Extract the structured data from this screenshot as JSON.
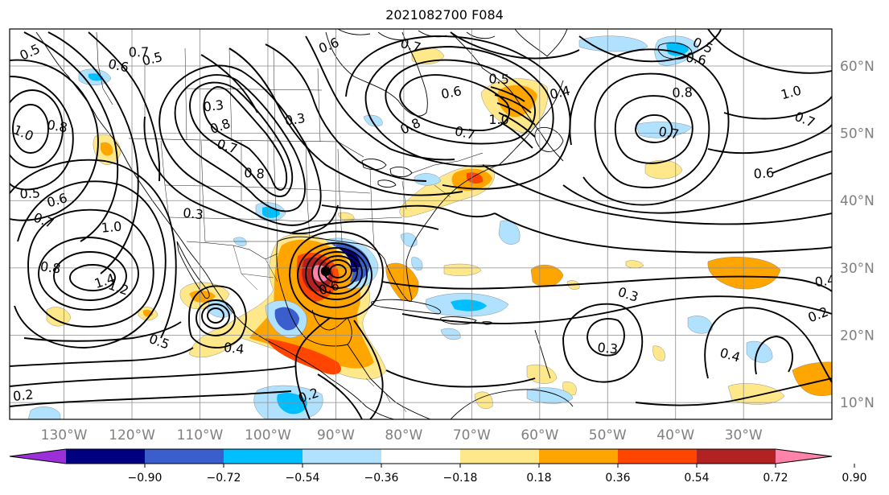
{
  "title": "2021082700 F084",
  "map": {
    "lon_range": [
      -138,
      -17
    ],
    "lat_range": [
      7.5,
      65.5
    ],
    "lon_ticks": [
      {
        "value": -130,
        "label": "130°W"
      },
      {
        "value": -120,
        "label": "120°W"
      },
      {
        "value": -110,
        "label": "110°W"
      },
      {
        "value": -100,
        "label": "100°W"
      },
      {
        "value": -90,
        "label": "90°W"
      },
      {
        "value": -80,
        "label": "80°W"
      },
      {
        "value": -70,
        "label": "70°W"
      },
      {
        "value": -60,
        "label": "60°W"
      },
      {
        "value": -50,
        "label": "50°W"
      },
      {
        "value": -40,
        "label": "40°W"
      },
      {
        "value": -30,
        "label": "30°W"
      }
    ],
    "lat_ticks": [
      {
        "value": 10,
        "label": "10°N"
      },
      {
        "value": 20,
        "label": "20°N"
      },
      {
        "value": 30,
        "label": "30°N"
      },
      {
        "value": 40,
        "label": "40°N"
      },
      {
        "value": 50,
        "label": "50°N"
      },
      {
        "value": 60,
        "label": "60°N"
      }
    ],
    "gridlines": true,
    "cyclone_center": {
      "lon": -91.5,
      "lat": 29.5
    }
  },
  "colorbar": {
    "ticks": [
      "−0.90",
      "−0.72",
      "−0.54",
      "−0.36",
      "−0.18",
      "0.18",
      "0.36",
      "0.54",
      "0.72",
      "0.90"
    ],
    "colors": [
      "#9b30d9",
      "#000080",
      "#3a5fcd",
      "#00bfff",
      "#b0e2ff",
      "#ffffff",
      "#ffe88a",
      "#ffa500",
      "#ff4500",
      "#b22222",
      "#ff82ab"
    ]
  },
  "contour_labels": [
    {
      "text": "0.5",
      "lon": -135,
      "lat": 62
    },
    {
      "text": "0.6",
      "lon": -122,
      "lat": 60
    },
    {
      "text": "0.7",
      "lon": -119,
      "lat": 62
    },
    {
      "text": "0.5",
      "lon": -117,
      "lat": 61
    },
    {
      "text": "1.0",
      "lon": -136,
      "lat": 50
    },
    {
      "text": "0.8",
      "lon": -131,
      "lat": 51
    },
    {
      "text": "0.5",
      "lon": -135,
      "lat": 41
    },
    {
      "text": "0.6",
      "lon": -131,
      "lat": 40
    },
    {
      "text": "0.7",
      "lon": -133,
      "lat": 37
    },
    {
      "text": "0.8",
      "lon": -132,
      "lat": 30
    },
    {
      "text": "1.0",
      "lon": -123,
      "lat": 36
    },
    {
      "text": "1.4",
      "lon": -124,
      "lat": 28
    },
    {
      "text": "1.2",
      "lon": -122,
      "lat": 27
    },
    {
      "text": "0.3",
      "lon": -111,
      "lat": 38
    },
    {
      "text": "0.3",
      "lon": -108,
      "lat": 54
    },
    {
      "text": "0.8",
      "lon": -107,
      "lat": 51
    },
    {
      "text": "0.7",
      "lon": -106,
      "lat": 48
    },
    {
      "text": "0.8",
      "lon": -102,
      "lat": 44
    },
    {
      "text": "0.3",
      "lon": -96,
      "lat": 52
    },
    {
      "text": "0.6",
      "lon": -91,
      "lat": 63
    },
    {
      "text": "0.7",
      "lon": -79,
      "lat": 63
    },
    {
      "text": "0.5",
      "lon": -66,
      "lat": 58
    },
    {
      "text": "0.6",
      "lon": -73,
      "lat": 56
    },
    {
      "text": "0.8",
      "lon": -79,
      "lat": 51
    },
    {
      "text": "0.7",
      "lon": -71,
      "lat": 50
    },
    {
      "text": "1.0",
      "lon": -66,
      "lat": 52
    },
    {
      "text": "0.4",
      "lon": -57,
      "lat": 56
    },
    {
      "text": "0.5",
      "lon": -36,
      "lat": 63
    },
    {
      "text": "0.6",
      "lon": -37,
      "lat": 61
    },
    {
      "text": "0.8",
      "lon": -39,
      "lat": 56
    },
    {
      "text": "1.0",
      "lon": -23,
      "lat": 56
    },
    {
      "text": "0.7",
      "lon": -21,
      "lat": 52
    },
    {
      "text": "0.7",
      "lon": -41,
      "lat": 50
    },
    {
      "text": "0.6",
      "lon": -27,
      "lat": 44
    },
    {
      "text": "0.6",
      "lon": -91,
      "lat": 27
    },
    {
      "text": "0.5",
      "lon": -116,
      "lat": 19
    },
    {
      "text": "0.4",
      "lon": -105,
      "lat": 18
    },
    {
      "text": "0.2",
      "lon": -136,
      "lat": 11
    },
    {
      "text": "0.2",
      "lon": -94,
      "lat": 11
    },
    {
      "text": "0.3",
      "lon": -47,
      "lat": 26
    },
    {
      "text": "0.3",
      "lon": -50,
      "lat": 18
    },
    {
      "text": "0.4",
      "lon": -18,
      "lat": 28
    },
    {
      "text": "0.2",
      "lon": -19,
      "lat": 23
    },
    {
      "text": "0.4",
      "lon": -32,
      "lat": 17
    }
  ]
}
